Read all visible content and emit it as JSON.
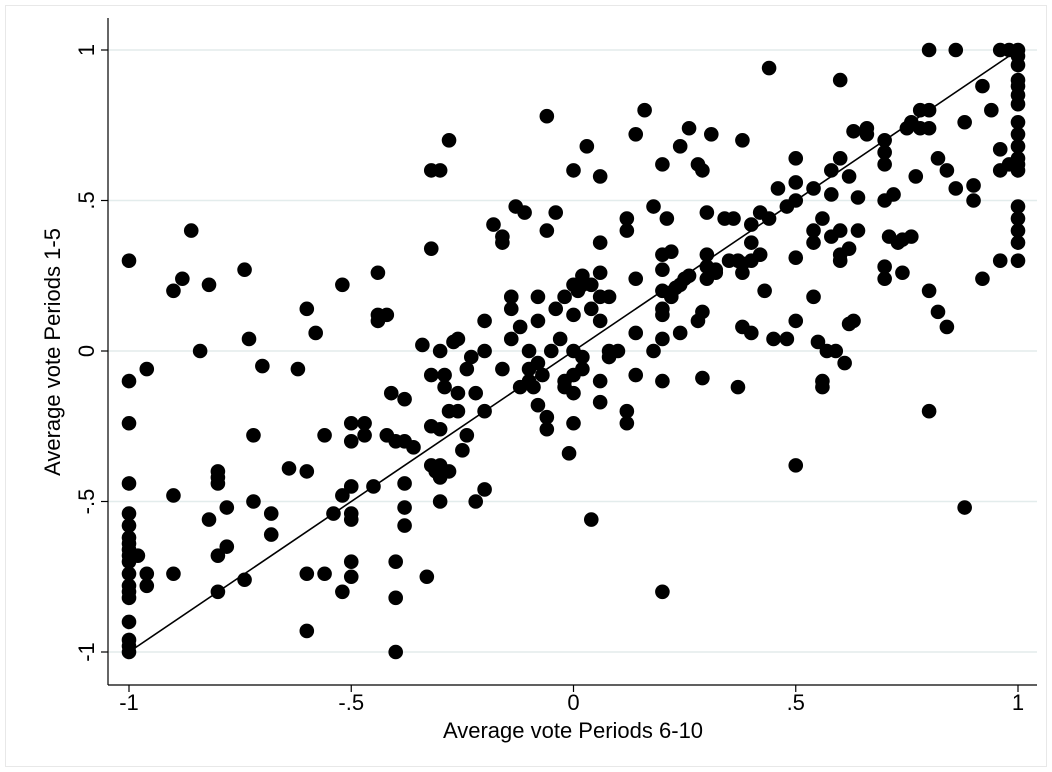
{
  "chart_data": {
    "type": "scatter",
    "title": "",
    "xlabel": "Average vote Periods 6-10",
    "ylabel": "Average vote Periods 1-5",
    "xlim": [
      -1,
      1
    ],
    "ylim": [
      -1,
      1
    ],
    "xticks": [
      -1,
      -0.5,
      0,
      0.5,
      1
    ],
    "xtick_labels": [
      "-1",
      "-.5",
      "0",
      ".5",
      "1"
    ],
    "yticks": [
      -1,
      -0.5,
      0,
      0.5,
      1
    ],
    "ytick_labels": [
      "-1",
      "-.5",
      "0",
      ".5",
      "1"
    ],
    "grid": "horizontal",
    "legend": "none",
    "reference_line": {
      "x": [
        -1,
        1
      ],
      "y": [
        -1,
        1
      ]
    },
    "marker_color": "#000000",
    "grid_color": "#e3ecec",
    "points": [
      [
        -1,
        0.3
      ],
      [
        -1,
        -0.1
      ],
      [
        -1,
        -0.24
      ],
      [
        -1,
        -0.44
      ],
      [
        -1,
        -0.54
      ],
      [
        -1,
        -0.58
      ],
      [
        -1,
        -0.62
      ],
      [
        -1,
        -0.64
      ],
      [
        -1,
        -0.66
      ],
      [
        -1,
        -0.68
      ],
      [
        -1,
        -0.7
      ],
      [
        -1,
        -0.74
      ],
      [
        -1,
        -0.78
      ],
      [
        -1,
        -0.8
      ],
      [
        -1,
        -0.82
      ],
      [
        -1,
        -0.9
      ],
      [
        -1,
        -0.96
      ],
      [
        -1,
        -0.98
      ],
      [
        -1,
        -1.0
      ],
      [
        -0.98,
        -0.68
      ],
      [
        -0.96,
        -0.06
      ],
      [
        -0.96,
        -0.74
      ],
      [
        -0.96,
        -0.78
      ],
      [
        -0.9,
        0.2
      ],
      [
        -0.9,
        -0.48
      ],
      [
        -0.9,
        -0.74
      ],
      [
        -0.88,
        0.24
      ],
      [
        -0.86,
        0.4
      ],
      [
        -0.84,
        0.0
      ],
      [
        -0.82,
        0.22
      ],
      [
        -0.82,
        -0.56
      ],
      [
        -0.8,
        -0.4
      ],
      [
        -0.8,
        -0.42
      ],
      [
        -0.8,
        -0.44
      ],
      [
        -0.8,
        -0.68
      ],
      [
        -0.8,
        -0.8
      ],
      [
        -0.78,
        -0.52
      ],
      [
        -0.78,
        -0.65
      ],
      [
        -0.74,
        0.27
      ],
      [
        -0.74,
        -0.76
      ],
      [
        -0.73,
        0.04
      ],
      [
        -0.72,
        -0.28
      ],
      [
        -0.72,
        -0.5
      ],
      [
        -0.7,
        -0.05
      ],
      [
        -0.68,
        -0.54
      ],
      [
        -0.68,
        -0.61
      ],
      [
        -0.64,
        -0.39
      ],
      [
        -0.62,
        -0.06
      ],
      [
        -0.6,
        0.14
      ],
      [
        -0.6,
        -0.4
      ],
      [
        -0.6,
        -0.74
      ],
      [
        -0.6,
        -0.93
      ],
      [
        -0.58,
        0.06
      ],
      [
        -0.56,
        -0.28
      ],
      [
        -0.56,
        -0.74
      ],
      [
        -0.54,
        -0.54
      ],
      [
        -0.52,
        0.22
      ],
      [
        -0.52,
        -0.48
      ],
      [
        -0.52,
        -0.8
      ],
      [
        -0.5,
        -0.24
      ],
      [
        -0.5,
        -0.3
      ],
      [
        -0.5,
        -0.45
      ],
      [
        -0.5,
        -0.54
      ],
      [
        -0.5,
        -0.56
      ],
      [
        -0.5,
        -0.7
      ],
      [
        -0.5,
        -0.75
      ],
      [
        -0.47,
        -0.24
      ],
      [
        -0.47,
        -0.28
      ],
      [
        -0.45,
        -0.45
      ],
      [
        -0.44,
        0.26
      ],
      [
        -0.44,
        0.1
      ],
      [
        -0.44,
        0.12
      ],
      [
        -0.42,
        0.12
      ],
      [
        -0.42,
        -0.28
      ],
      [
        -0.41,
        -0.14
      ],
      [
        -0.4,
        -0.3
      ],
      [
        -0.4,
        -0.7
      ],
      [
        -0.4,
        -0.82
      ],
      [
        -0.4,
        -1.0
      ],
      [
        -0.38,
        -0.16
      ],
      [
        -0.38,
        -0.3
      ],
      [
        -0.38,
        -0.44
      ],
      [
        -0.38,
        -0.52
      ],
      [
        -0.38,
        -0.58
      ],
      [
        -0.36,
        -0.32
      ],
      [
        -0.34,
        0.02
      ],
      [
        -0.33,
        -0.75
      ],
      [
        -0.32,
        0.6
      ],
      [
        -0.32,
        0.34
      ],
      [
        -0.32,
        -0.08
      ],
      [
        -0.32,
        -0.25
      ],
      [
        -0.32,
        -0.38
      ],
      [
        -0.31,
        -0.4
      ],
      [
        -0.3,
        0.6
      ],
      [
        -0.3,
        0.0
      ],
      [
        -0.3,
        -0.26
      ],
      [
        -0.3,
        -0.38
      ],
      [
        -0.3,
        -0.42
      ],
      [
        -0.3,
        -0.5
      ],
      [
        -0.29,
        -0.08
      ],
      [
        -0.29,
        -0.12
      ],
      [
        -0.28,
        0.7
      ],
      [
        -0.28,
        -0.2
      ],
      [
        -0.28,
        -0.4
      ],
      [
        -0.27,
        0.03
      ],
      [
        -0.26,
        0.04
      ],
      [
        -0.26,
        -0.14
      ],
      [
        -0.26,
        -0.2
      ],
      [
        -0.25,
        -0.33
      ],
      [
        -0.24,
        -0.06
      ],
      [
        -0.24,
        -0.28
      ],
      [
        -0.23,
        -0.02
      ],
      [
        -0.22,
        -0.14
      ],
      [
        -0.22,
        -0.5
      ],
      [
        -0.2,
        0.1
      ],
      [
        -0.2,
        0.0
      ],
      [
        -0.2,
        -0.2
      ],
      [
        -0.2,
        -0.46
      ],
      [
        -0.18,
        0.42
      ],
      [
        -0.16,
        0.38
      ],
      [
        -0.16,
        0.36
      ],
      [
        -0.16,
        -0.06
      ],
      [
        -0.14,
        0.18
      ],
      [
        -0.14,
        0.14
      ],
      [
        -0.14,
        0.04
      ],
      [
        -0.13,
        0.48
      ],
      [
        -0.12,
        0.08
      ],
      [
        -0.12,
        -0.12
      ],
      [
        -0.11,
        0.46
      ],
      [
        -0.1,
        0.0
      ],
      [
        -0.1,
        -0.06
      ],
      [
        -0.1,
        -0.1
      ],
      [
        -0.09,
        -0.12
      ],
      [
        -0.08,
        0.18
      ],
      [
        -0.08,
        0.1
      ],
      [
        -0.08,
        -0.04
      ],
      [
        -0.08,
        -0.18
      ],
      [
        -0.07,
        -0.08
      ],
      [
        -0.06,
        0.78
      ],
      [
        -0.06,
        0.4
      ],
      [
        -0.06,
        -0.22
      ],
      [
        -0.06,
        -0.26
      ],
      [
        -0.05,
        0.0
      ],
      [
        -0.04,
        0.46
      ],
      [
        -0.04,
        0.14
      ],
      [
        -0.03,
        0.04
      ],
      [
        -0.02,
        0.18
      ],
      [
        -0.02,
        -0.1
      ],
      [
        -0.02,
        -0.12
      ],
      [
        -0.01,
        -0.34
      ],
      [
        0.0,
        0.6
      ],
      [
        0.0,
        0.22
      ],
      [
        0.0,
        0.12
      ],
      [
        0.0,
        0.0
      ],
      [
        0.0,
        -0.08
      ],
      [
        0.0,
        -0.14
      ],
      [
        0.0,
        -0.24
      ],
      [
        0.01,
        0.2
      ],
      [
        0.02,
        0.25
      ],
      [
        0.02,
        0.22
      ],
      [
        0.02,
        -0.02
      ],
      [
        0.02,
        -0.06
      ],
      [
        0.03,
        0.68
      ],
      [
        0.04,
        0.22
      ],
      [
        0.04,
        0.14
      ],
      [
        0.04,
        -0.56
      ],
      [
        0.06,
        0.58
      ],
      [
        0.06,
        0.36
      ],
      [
        0.06,
        0.26
      ],
      [
        0.06,
        0.18
      ],
      [
        0.06,
        0.1
      ],
      [
        0.06,
        -0.1
      ],
      [
        0.06,
        -0.17
      ],
      [
        0.08,
        0.18
      ],
      [
        0.08,
        0.0
      ],
      [
        0.08,
        -0.02
      ],
      [
        0.1,
        0.0
      ],
      [
        0.12,
        0.44
      ],
      [
        0.12,
        0.4
      ],
      [
        0.12,
        -0.2
      ],
      [
        0.12,
        -0.24
      ],
      [
        0.14,
        0.72
      ],
      [
        0.14,
        0.24
      ],
      [
        0.14,
        0.06
      ],
      [
        0.14,
        -0.08
      ],
      [
        0.16,
        0.8
      ],
      [
        0.18,
        0.48
      ],
      [
        0.18,
        0.0
      ],
      [
        0.2,
        0.62
      ],
      [
        0.2,
        0.32
      ],
      [
        0.2,
        0.27
      ],
      [
        0.2,
        0.2
      ],
      [
        0.2,
        0.14
      ],
      [
        0.2,
        0.12
      ],
      [
        0.2,
        0.04
      ],
      [
        0.2,
        -0.1
      ],
      [
        0.2,
        -0.8
      ],
      [
        0.21,
        0.44
      ],
      [
        0.22,
        0.33
      ],
      [
        0.22,
        0.18
      ],
      [
        0.23,
        0.21
      ],
      [
        0.24,
        0.68
      ],
      [
        0.24,
        0.22
      ],
      [
        0.24,
        0.06
      ],
      [
        0.25,
        0.24
      ],
      [
        0.26,
        0.74
      ],
      [
        0.26,
        0.25
      ],
      [
        0.28,
        0.62
      ],
      [
        0.28,
        0.1
      ],
      [
        0.29,
        0.6
      ],
      [
        0.29,
        0.13
      ],
      [
        0.29,
        -0.09
      ],
      [
        0.3,
        0.46
      ],
      [
        0.3,
        0.32
      ],
      [
        0.3,
        0.28
      ],
      [
        0.3,
        0.24
      ],
      [
        0.31,
        0.72
      ],
      [
        0.32,
        0.27
      ],
      [
        0.32,
        0.26
      ],
      [
        0.34,
        0.44
      ],
      [
        0.35,
        0.3
      ],
      [
        0.36,
        0.44
      ],
      [
        0.37,
        0.3
      ],
      [
        0.37,
        -0.12
      ],
      [
        0.38,
        0.7
      ],
      [
        0.38,
        0.29
      ],
      [
        0.38,
        0.26
      ],
      [
        0.38,
        0.08
      ],
      [
        0.4,
        0.42
      ],
      [
        0.4,
        0.36
      ],
      [
        0.4,
        0.3
      ],
      [
        0.4,
        0.06
      ],
      [
        0.42,
        0.46
      ],
      [
        0.42,
        0.32
      ],
      [
        0.43,
        0.2
      ],
      [
        0.44,
        0.94
      ],
      [
        0.44,
        0.44
      ],
      [
        0.45,
        0.04
      ],
      [
        0.46,
        0.54
      ],
      [
        0.48,
        0.48
      ],
      [
        0.48,
        0.04
      ],
      [
        0.5,
        0.64
      ],
      [
        0.5,
        0.56
      ],
      [
        0.5,
        0.5
      ],
      [
        0.5,
        0.31
      ],
      [
        0.5,
        0.1
      ],
      [
        0.5,
        -0.38
      ],
      [
        0.54,
        0.54
      ],
      [
        0.54,
        0.4
      ],
      [
        0.54,
        0.36
      ],
      [
        0.54,
        0.18
      ],
      [
        0.55,
        0.03
      ],
      [
        0.56,
        0.44
      ],
      [
        0.56,
        -0.1
      ],
      [
        0.56,
        -0.12
      ],
      [
        0.57,
        0.0
      ],
      [
        0.58,
        0.6
      ],
      [
        0.58,
        0.52
      ],
      [
        0.58,
        0.38
      ],
      [
        0.59,
        0.0
      ],
      [
        0.6,
        0.9
      ],
      [
        0.6,
        0.64
      ],
      [
        0.6,
        0.4
      ],
      [
        0.6,
        0.3
      ],
      [
        0.6,
        0.32
      ],
      [
        0.61,
        -0.04
      ],
      [
        0.62,
        0.58
      ],
      [
        0.62,
        0.34
      ],
      [
        0.62,
        0.09
      ],
      [
        0.63,
        0.73
      ],
      [
        0.63,
        0.1
      ],
      [
        0.64,
        0.51
      ],
      [
        0.64,
        0.4
      ],
      [
        0.66,
        0.74
      ],
      [
        0.66,
        0.72
      ],
      [
        0.7,
        0.7
      ],
      [
        0.7,
        0.66
      ],
      [
        0.7,
        0.62
      ],
      [
        0.7,
        0.5
      ],
      [
        0.7,
        0.28
      ],
      [
        0.7,
        0.24
      ],
      [
        0.71,
        0.38
      ],
      [
        0.72,
        0.52
      ],
      [
        0.73,
        0.36
      ],
      [
        0.74,
        0.37
      ],
      [
        0.74,
        0.26
      ],
      [
        0.75,
        0.74
      ],
      [
        0.76,
        0.76
      ],
      [
        0.76,
        0.38
      ],
      [
        0.77,
        0.58
      ],
      [
        0.78,
        0.8
      ],
      [
        0.78,
        0.74
      ],
      [
        0.8,
        1.0
      ],
      [
        0.8,
        0.8
      ],
      [
        0.8,
        0.74
      ],
      [
        0.8,
        0.2
      ],
      [
        0.8,
        -0.2
      ],
      [
        0.82,
        0.64
      ],
      [
        0.82,
        0.13
      ],
      [
        0.84,
        0.6
      ],
      [
        0.84,
        0.08
      ],
      [
        0.86,
        1.0
      ],
      [
        0.86,
        0.54
      ],
      [
        0.88,
        0.76
      ],
      [
        0.88,
        -0.52
      ],
      [
        0.9,
        0.55
      ],
      [
        0.9,
        0.5
      ],
      [
        0.92,
        0.24
      ],
      [
        0.92,
        0.88
      ],
      [
        0.94,
        0.8
      ],
      [
        0.96,
        1.0
      ],
      [
        0.96,
        0.67
      ],
      [
        0.96,
        0.6
      ],
      [
        0.96,
        0.3
      ],
      [
        0.98,
        0.62
      ],
      [
        0.98,
        1.0
      ],
      [
        1,
        1.0
      ],
      [
        1,
        0.98
      ],
      [
        1,
        0.95
      ],
      [
        1,
        0.9
      ],
      [
        1,
        0.88
      ],
      [
        1,
        0.85
      ],
      [
        1,
        0.82
      ],
      [
        1,
        0.76
      ],
      [
        1,
        0.72
      ],
      [
        1,
        0.68
      ],
      [
        1,
        0.64
      ],
      [
        1,
        0.62
      ],
      [
        1,
        0.6
      ],
      [
        1,
        0.48
      ],
      [
        1,
        0.44
      ],
      [
        1,
        0.4
      ],
      [
        1,
        0.36
      ],
      [
        1,
        0.3
      ]
    ]
  }
}
